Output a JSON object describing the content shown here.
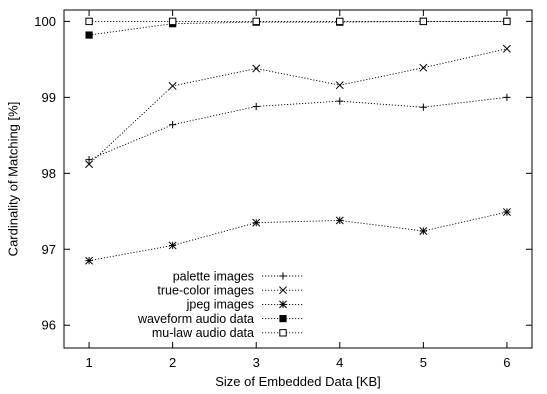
{
  "chart_data": {
    "type": "line",
    "xlabel": "Size of Embedded Data [KB]",
    "ylabel": "Cardinality of Matching [%]",
    "x": [
      1,
      2,
      3,
      4,
      5,
      6
    ],
    "xticks": [
      "1",
      "2",
      "3",
      "4",
      "5",
      "6"
    ],
    "yticks": [
      "96",
      "97",
      "98",
      "99",
      "100"
    ],
    "xlim": [
      0.7,
      6.3
    ],
    "ylim": [
      95.7,
      100.15
    ],
    "grid": false,
    "legend_position": "bottom-left",
    "series": [
      {
        "name": "palette images",
        "marker": "plus",
        "values": [
          98.18,
          98.64,
          98.88,
          98.95,
          98.87,
          99.0
        ]
      },
      {
        "name": "true-color images",
        "marker": "cross",
        "values": [
          98.12,
          99.15,
          99.38,
          99.16,
          99.39,
          99.64
        ]
      },
      {
        "name": "jpeg images",
        "marker": "asterisk",
        "values": [
          96.85,
          97.05,
          97.35,
          97.38,
          97.24,
          97.49
        ]
      },
      {
        "name": "waveform audio data",
        "marker": "filled-square",
        "values": [
          99.82,
          99.97,
          99.99,
          99.99,
          100.0,
          100.0
        ]
      },
      {
        "name": "mu-law audio data",
        "marker": "open-square",
        "values": [
          100.0,
          100.0,
          100.0,
          100.0,
          100.0,
          100.0
        ]
      }
    ]
  }
}
